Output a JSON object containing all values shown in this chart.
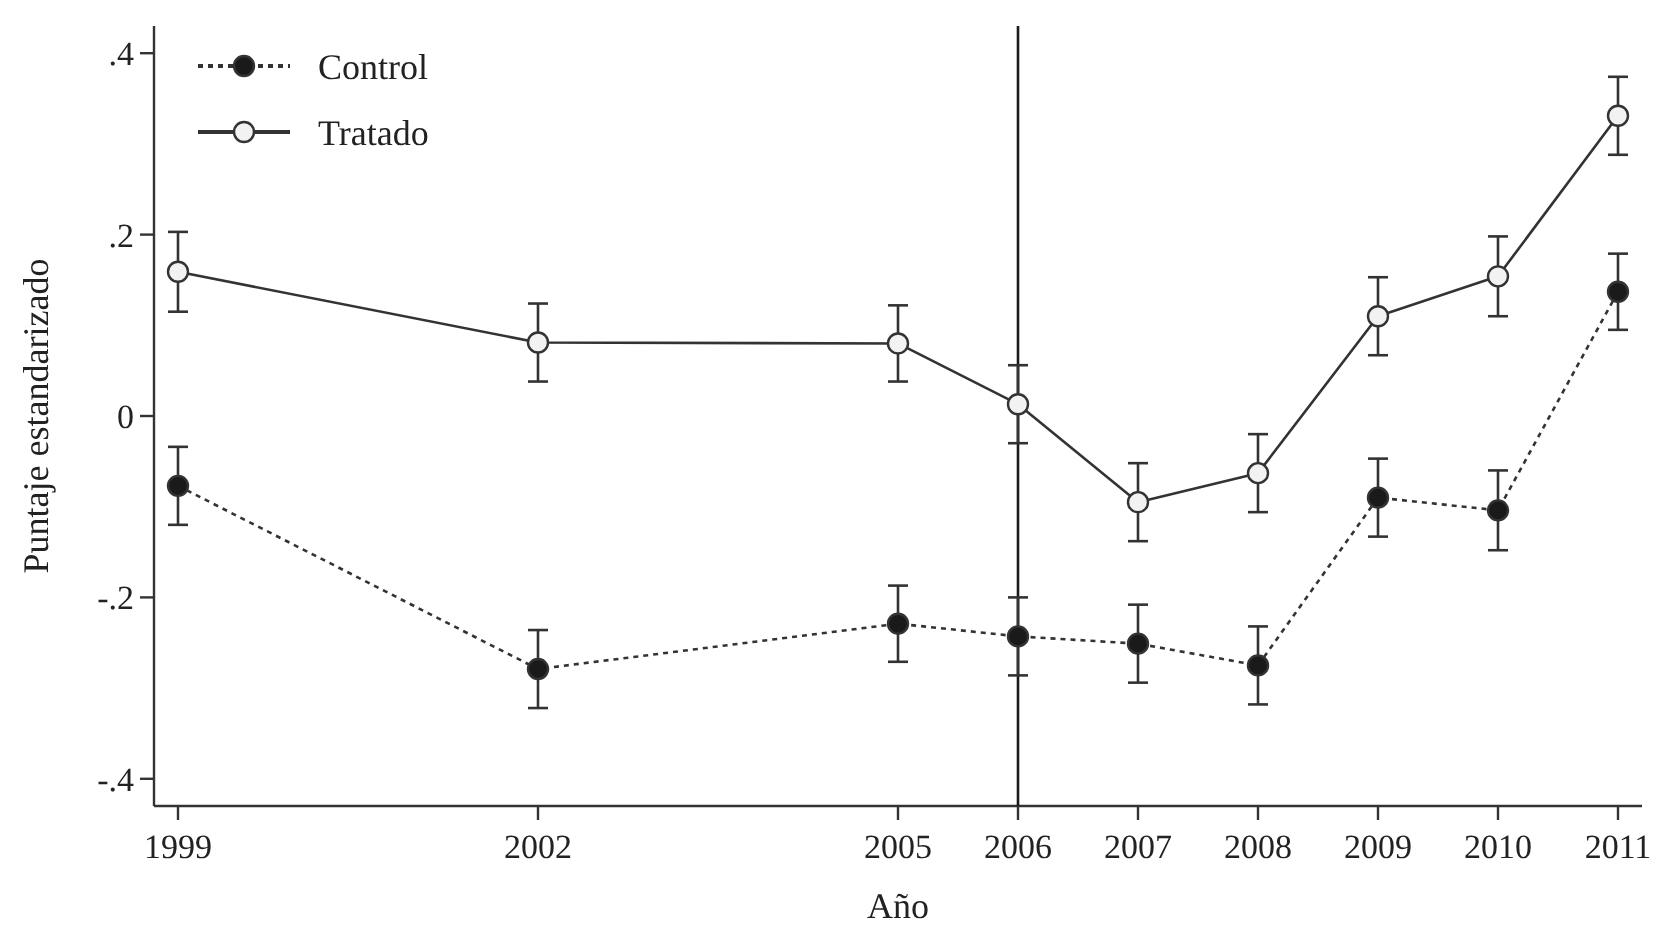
{
  "chart_data": {
    "type": "line",
    "xlabel": "Año",
    "ylabel": "Puntaje estandarizado",
    "x": [
      1999,
      2002,
      2005,
      2006,
      2007,
      2008,
      2009,
      2010,
      2011
    ],
    "series": [
      {
        "name": "Control",
        "color": "#1a1a1a",
        "line_style": "dotted",
        "values": [
          -0.077,
          -0.279,
          -0.229,
          -0.243,
          -0.251,
          -0.275,
          -0.09,
          -0.104,
          0.137
        ],
        "errors": [
          0.043,
          0.043,
          0.042,
          0.043,
          0.043,
          0.043,
          0.043,
          0.044,
          0.042
        ]
      },
      {
        "name": "Tratado",
        "color": "#f2f2f2",
        "line_style": "solid",
        "values": [
          0.159,
          0.081,
          0.08,
          0.013,
          -0.095,
          -0.063,
          0.11,
          0.154,
          0.331
        ],
        "errors": [
          0.044,
          0.043,
          0.042,
          0.043,
          0.043,
          0.043,
          0.043,
          0.044,
          0.043
        ]
      }
    ],
    "xlim": [
      1998.8,
      2011.2
    ],
    "xticks": [
      1999,
      2002,
      2005,
      2006,
      2007,
      2008,
      2009,
      2010,
      2011
    ],
    "ylim": [
      -0.43,
      0.43
    ],
    "yticks": [
      {
        "value": -0.4,
        "label": "-.4"
      },
      {
        "value": -0.2,
        "label": "-.2"
      },
      0,
      {
        "value": 0.2,
        "label": ".2"
      },
      {
        "value": 0.4,
        "label": ".4"
      }
    ],
    "ref_lines": [
      {
        "axis": "x",
        "value": 2006,
        "color": "#1a1a1a"
      }
    ],
    "grid": false,
    "legend": "top left",
    "marker": "circle"
  }
}
